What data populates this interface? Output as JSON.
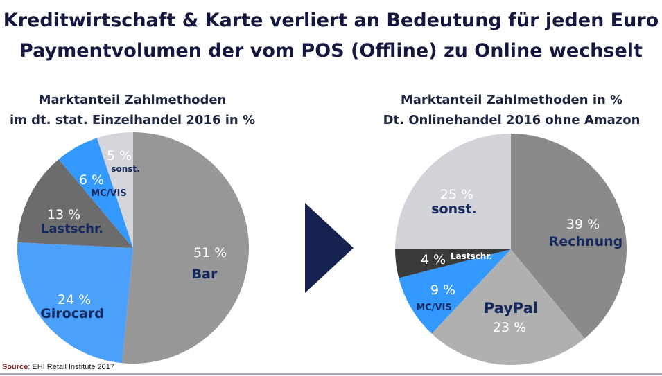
{
  "title": {
    "line1": "Kreditwirtschaft & Karte verliert an Bedeutung für jeden Euro",
    "line2": "Paymentvolumen der vom POS (Offline) zu Online wechselt"
  },
  "source": {
    "label": "Source",
    "text": ": EHI Retail Institute 2017"
  },
  "colors": {
    "dark_navy": "#15173f",
    "label_blue": "#15295e",
    "bar_gray": "#979797",
    "girocard_blue": "#4aa0fa",
    "lastschr_dark": "#6c6c6c",
    "mcvis_blue": "#3399ff",
    "sonst_light": "#d4d5da",
    "rechnung_gray": "#8a8a8a",
    "paypal_gray": "#b0b0b0",
    "lastschr_black": "#3a3a3a",
    "sonst_right": "#d2d3d8"
  },
  "chart_data": [
    {
      "type": "pie",
      "title_line1": "Marktanteil Zahlmethoden",
      "title_line2": "im dt. stat. Einzelhandel 2016 in %",
      "slices": [
        {
          "label": "Bar",
          "value": 51,
          "value_label": "51 %",
          "color": "#979797"
        },
        {
          "label": "Girocard",
          "value": 24,
          "value_label": "24 %",
          "color": "#4aa0fa"
        },
        {
          "label": "Lastschr.",
          "value": 13,
          "value_label": "13 %",
          "color": "#6c6c6c"
        },
        {
          "label": "MC/VIS",
          "value": 6,
          "value_label": "6 %",
          "color": "#3399ff"
        },
        {
          "label": "sonst.",
          "value": 5,
          "value_label": "5 %",
          "color": "#d4d5da"
        }
      ]
    },
    {
      "type": "pie",
      "title_line1": "Marktanteil Zahlmethoden in %",
      "title_line2_pre": "Dt. Onlinehandel 2016 ",
      "title_line2_underlined": "ohne",
      "title_line2_post": " Amazon",
      "slices": [
        {
          "label": "Rechnung",
          "value": 39,
          "value_label": "39 %",
          "color": "#8a8a8a"
        },
        {
          "label": "PayPal",
          "value": 23,
          "value_label": "23 %",
          "color": "#b0b0b0"
        },
        {
          "label": "MC/VIS",
          "value": 9,
          "value_label": "9 %",
          "color": "#3399ff"
        },
        {
          "label": "Lastschr.",
          "value": 4,
          "value_label": "4 %",
          "color": "#3a3a3a"
        },
        {
          "label": "sonst.",
          "value": 25,
          "value_label": "25 %",
          "color": "#d2d3d8"
        }
      ]
    }
  ]
}
